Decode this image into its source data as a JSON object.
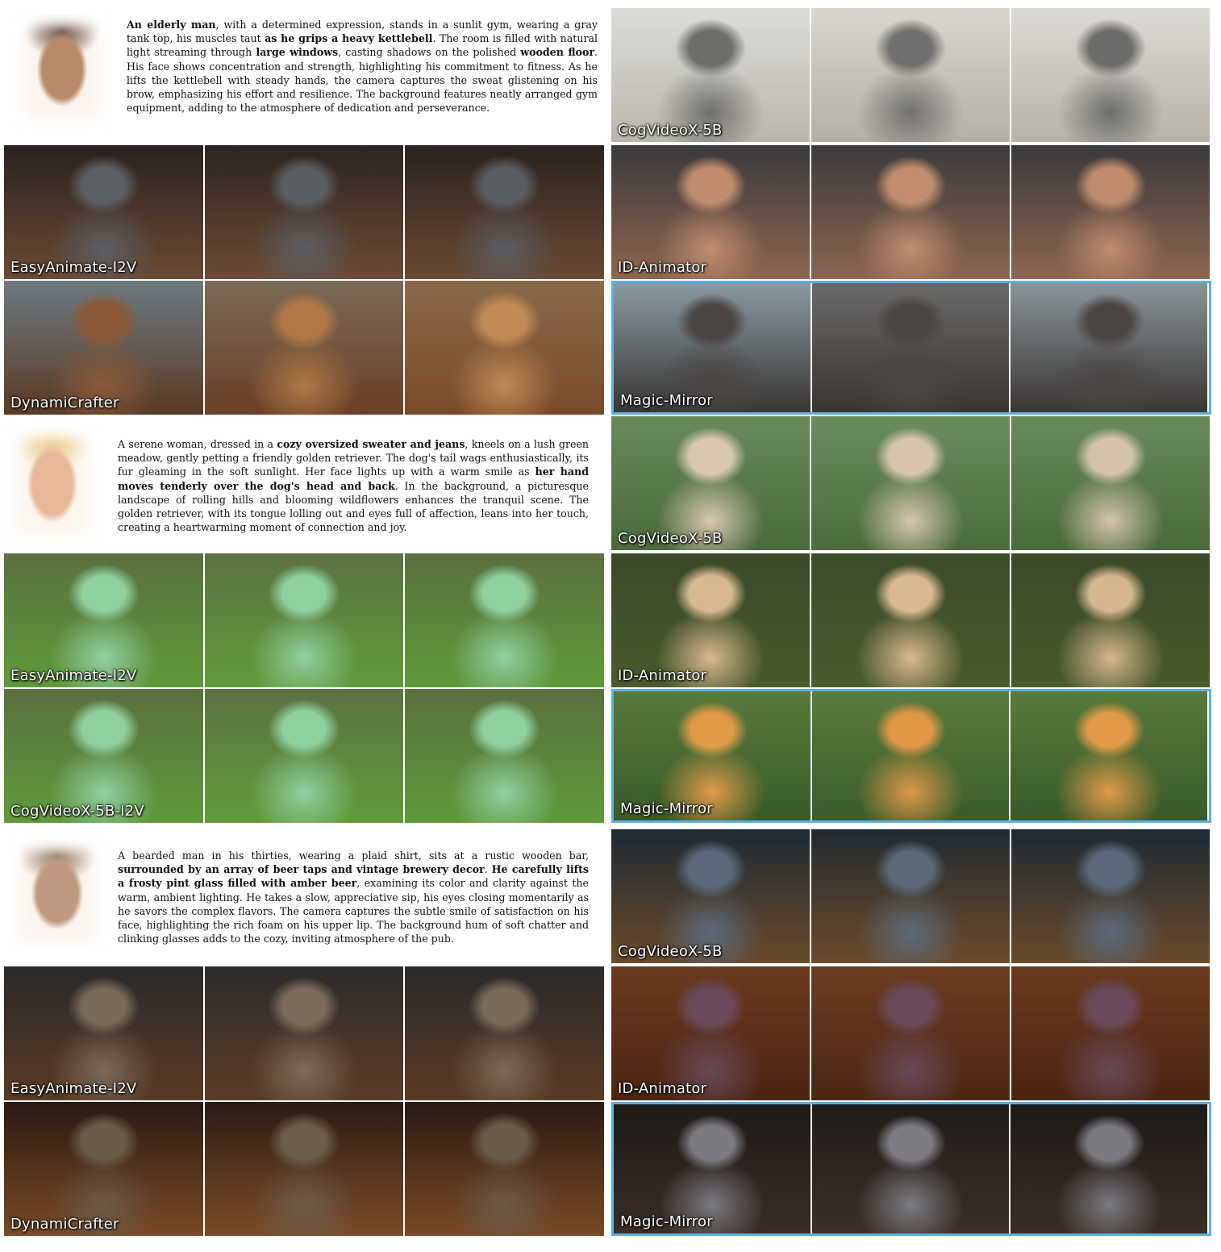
{
  "groups": [
    {
      "prompt_parts": [
        {
          "t": "An elderly man",
          "b": true
        },
        {
          "t": ", with a determined expression, stands in a sunlit gym, wearing a gray tank top, his muscles taut ",
          "b": false
        },
        {
          "t": "as he grips a heavy kettlebell",
          "b": true
        },
        {
          "t": ". The room is filled with natural light streaming through ",
          "b": false
        },
        {
          "t": "large windows",
          "b": true
        },
        {
          "t": ", casting shadows on the polished ",
          "b": false
        },
        {
          "t": "wooden floor",
          "b": true
        },
        {
          "t": ". His face shows concentration and strength, highlighting his commitment to fitness. As he lifts the kettlebell with steady hands, the camera captures the sweat glistening on his brow, emphasizing his effort and resilience. The background features neatly arranged gym equipment, adding to the atmosphere of dedication and perseverance.",
          "b": false
        }
      ],
      "methods": [
        "CogVideoX-5B",
        "EasyAnimate-I2V",
        "ID-Animator",
        "DynamiCrafter",
        "Magic-Mirror"
      ]
    },
    {
      "prompt_parts": [
        {
          "t": "A serene woman, dressed in a ",
          "b": false
        },
        {
          "t": "cozy oversized sweater and jeans",
          "b": true
        },
        {
          "t": ", kneels on a lush green meadow, gently petting a friendly golden retriever. The dog's tail wags enthusiastically, its fur gleaming in the soft sunlight. Her face lights up with a warm smile as ",
          "b": false
        },
        {
          "t": "her hand moves tenderly over the dog's head and back",
          "b": true
        },
        {
          "t": ". In the background, a picturesque landscape of rolling hills and blooming wildflowers enhances the tranquil scene. The golden retriever, with its tongue lolling out and eyes full of affection, leans into her touch, creating a heartwarming moment of connection and joy.",
          "b": false
        }
      ],
      "methods": [
        "CogVideoX-5B",
        "EasyAnimate-I2V",
        "ID-Animator",
        "CogVideoX-5B-I2V",
        "Magic-Mirror"
      ]
    },
    {
      "prompt_parts": [
        {
          "t": "A bearded man in his thirties, wearing a plaid shirt, sits at a rustic wooden bar, ",
          "b": false
        },
        {
          "t": "surrounded by an array of beer taps and vintage brewery decor",
          "b": true
        },
        {
          "t": ". ",
          "b": false
        },
        {
          "t": "He carefully lifts a frosty pint glass filled with amber beer",
          "b": true
        },
        {
          "t": ", examining its color and clarity against the warm, ambient lighting. He takes a slow, appreciative sip, his eyes closing momentarily as he savors the complex flavors. The camera captures the subtle smile of satisfaction on his face, highlighting the rich foam on his upper lip. The background hum of soft chatter and clinking glasses adds to the cozy, inviting atmosphere of the pub.",
          "b": false
        }
      ],
      "methods": [
        "CogVideoX-5B",
        "EasyAnimate-I2V",
        "ID-Animator",
        "DynamiCrafter",
        "Magic-Mirror"
      ]
    }
  ],
  "colors": {
    "highlight_border": "#5ab0e0",
    "label_text": "#ffffff"
  }
}
